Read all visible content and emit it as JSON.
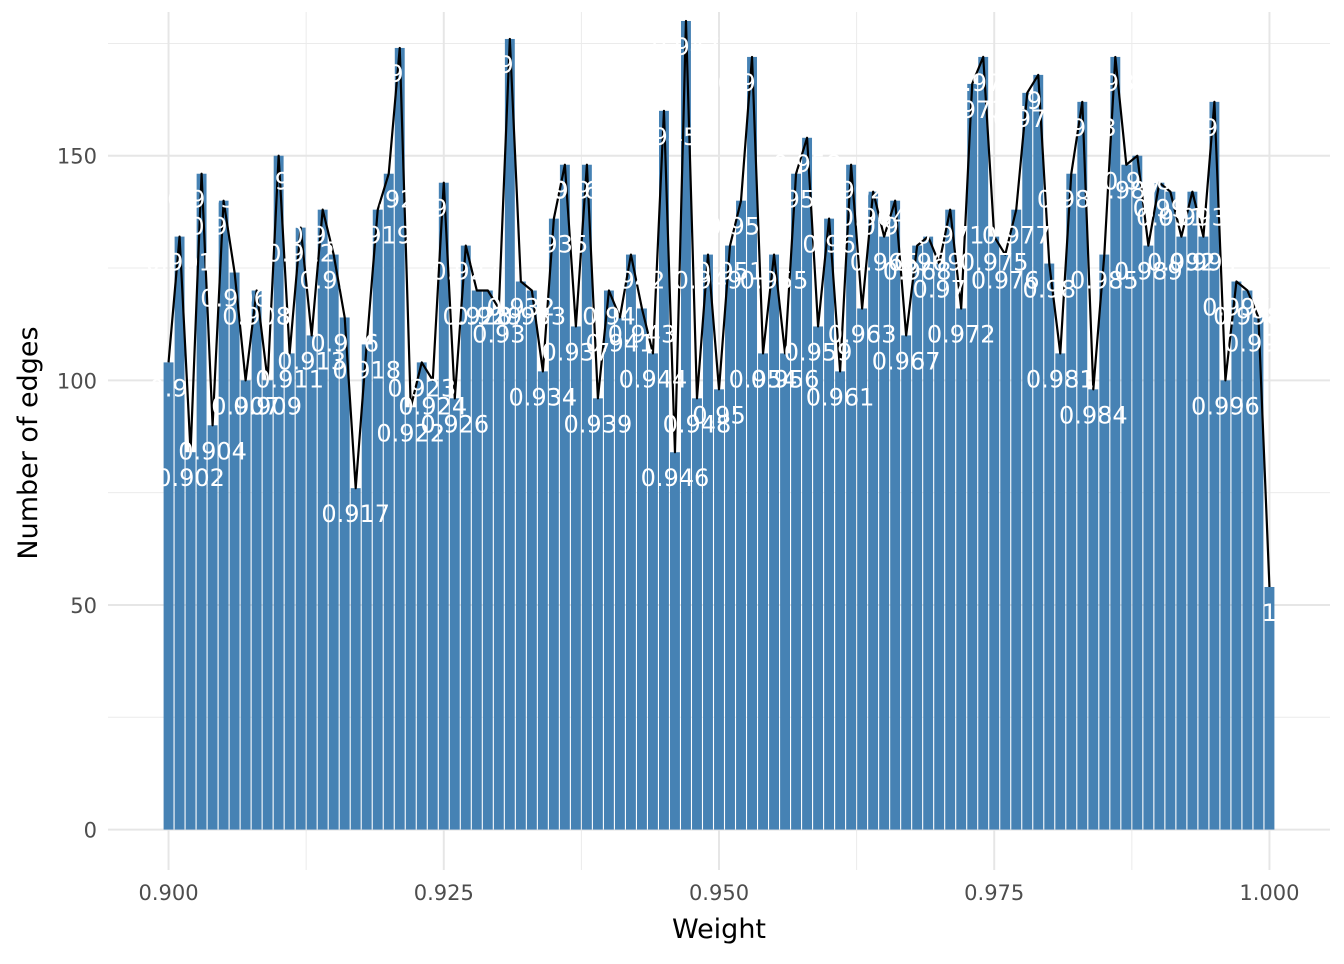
{
  "chart_data": {
    "type": "bar",
    "title": "",
    "xlabel": "Weight",
    "ylabel": "Number of edges",
    "xlim": [
      0.8945,
      1.0055
    ],
    "ylim": [
      -9,
      182
    ],
    "x_ticks": [
      0.9,
      0.925,
      0.95,
      0.975,
      1.0
    ],
    "x_tick_labels": [
      "0.900",
      "0.925",
      "0.950",
      "0.975",
      "1.000"
    ],
    "y_ticks": [
      0,
      50,
      100,
      150
    ],
    "y_tick_labels": [
      "0",
      "50",
      "100",
      "150"
    ],
    "grid": true,
    "bar_color": "#4682b4",
    "line_color": "#000000",
    "label_color": "#ffffff",
    "bar_width": 0.0009,
    "x": [
      0.9,
      0.901,
      0.902,
      0.903,
      0.904,
      0.905,
      0.906,
      0.907,
      0.908,
      0.909,
      0.91,
      0.911,
      0.912,
      0.913,
      0.914,
      0.915,
      0.916,
      0.917,
      0.918,
      0.919,
      0.92,
      0.921,
      0.922,
      0.923,
      0.924,
      0.925,
      0.926,
      0.927,
      0.928,
      0.929,
      0.93,
      0.931,
      0.932,
      0.933,
      0.934,
      0.935,
      0.936,
      0.937,
      0.938,
      0.939,
      0.94,
      0.941,
      0.942,
      0.943,
      0.944,
      0.945,
      0.946,
      0.947,
      0.948,
      0.949,
      0.95,
      0.951,
      0.952,
      0.953,
      0.954,
      0.955,
      0.956,
      0.957,
      0.958,
      0.959,
      0.96,
      0.961,
      0.962,
      0.963,
      0.964,
      0.965,
      0.966,
      0.967,
      0.968,
      0.969,
      0.97,
      0.971,
      0.972,
      0.973,
      0.974,
      0.975,
      0.976,
      0.977,
      0.978,
      0.979,
      0.98,
      0.981,
      0.982,
      0.983,
      0.984,
      0.985,
      0.986,
      0.987,
      0.988,
      0.989,
      0.99,
      0.991,
      0.992,
      0.993,
      0.994,
      0.995,
      0.996,
      0.997,
      0.998,
      0.999,
      1.0
    ],
    "values": [
      104,
      132,
      84,
      146,
      90,
      140,
      124,
      100,
      120,
      100,
      150,
      106,
      134,
      110,
      138,
      128,
      114,
      76,
      108,
      138,
      146,
      174,
      94,
      104,
      100,
      144,
      96,
      130,
      120,
      120,
      116,
      176,
      122,
      120,
      102,
      136,
      148,
      112,
      148,
      96,
      120,
      114,
      128,
      116,
      106,
      160,
      84,
      180,
      96,
      128,
      98,
      130,
      140,
      172,
      106,
      128,
      106,
      146,
      154,
      112,
      136,
      102,
      148,
      116,
      142,
      132,
      140,
      110,
      130,
      132,
      126,
      138,
      116,
      166,
      172,
      132,
      128,
      138,
      164,
      168,
      126,
      106,
      146,
      162,
      98,
      128,
      172,
      148,
      150,
      130,
      144,
      142,
      132,
      142,
      132,
      162,
      100,
      122,
      120,
      114,
      54
    ],
    "labels": [
      "0.9",
      "0.901",
      "0.902",
      "0.903",
      "0.904",
      "0.905",
      "0.906",
      "0.907",
      "0.908",
      "0.909",
      "0.91",
      "0.911",
      "0.912",
      "0.913",
      "0.914",
      "0.915",
      "0.916",
      "0.917",
      "0.918",
      "0.919",
      "0.92",
      "0.921",
      "0.922",
      "0.923",
      "0.924",
      "0.925",
      "0.926",
      "0.927",
      "0.928",
      "0.929",
      "0.93",
      "0.931",
      "0.932",
      "0.933",
      "0.934",
      "0.935",
      "0.936",
      "0.937",
      "0.938",
      "0.939",
      "0.94",
      "0.941",
      "0.942",
      "0.943",
      "0.944",
      "0.945",
      "0.946",
      "0.947",
      "0.948",
      "0.949",
      "0.95",
      "0.951",
      "0.952",
      "0.953",
      "0.954",
      "0.955",
      "0.956",
      "0.957",
      "0.958",
      "0.959",
      "0.96",
      "0.961",
      "0.962",
      "0.963",
      "0.964",
      "0.965",
      "0.966",
      "0.967",
      "0.968",
      "0.969",
      "0.97",
      "0.971",
      "0.972",
      "0.973",
      "0.974",
      "0.975",
      "0.976",
      "0.977",
      "0.978",
      "0.979",
      "0.98",
      "0.981",
      "0.982",
      "0.983",
      "0.984",
      "0.985",
      "0.986",
      "0.987",
      "0.988",
      "0.989",
      "0.99",
      "0.991",
      "0.992",
      "0.993",
      "0.994",
      "0.995",
      "0.996",
      "0.997",
      "0.998",
      "0.999",
      "1"
    ]
  }
}
